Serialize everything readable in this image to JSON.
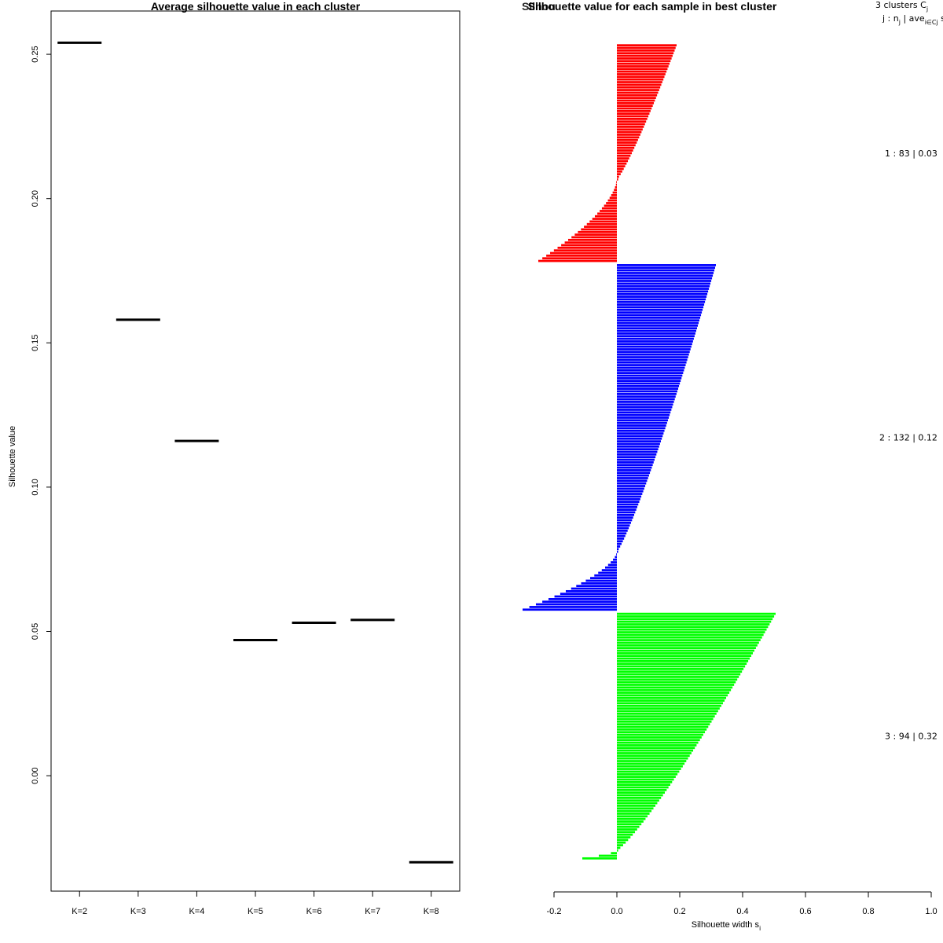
{
  "chart_data": [
    {
      "type": "scatter",
      "marker": "horizontal-segment",
      "title": "Average silhouette value in each cluster",
      "xlabel": "",
      "ylabel": "Silhouette value",
      "categories": [
        "K=2",
        "K=3",
        "K=4",
        "K=5",
        "K=6",
        "K=7",
        "K=8"
      ],
      "values": [
        0.254,
        0.158,
        0.116,
        0.047,
        0.053,
        0.054,
        -0.03
      ],
      "ylim": [
        -0.04,
        0.265
      ],
      "yticks": [
        "0.00",
        "0.05",
        "0.10",
        "0.15",
        "0.20",
        "0.25"
      ],
      "grid": false,
      "color": "#000000"
    },
    {
      "type": "bar",
      "orientation": "horizontal",
      "title": "Silhouette value for each sample in best cluster",
      "title_overlap": "Silhou",
      "xlabel": "Silhouette width s",
      "xlabel_sub": "i",
      "xlim": [
        -0.2,
        1.0
      ],
      "xticks": [
        "-0.2",
        "0.0",
        "0.2",
        "0.4",
        "0.6",
        "0.8",
        "1.0"
      ],
      "grid": false,
      "legend_header_1": "3  clusters  C",
      "legend_header_1_sub": "j",
      "legend_header_2": "j :  n",
      "legend_header_2_sub": "j",
      "legend_header_2b": " | ave",
      "legend_header_2b_sub": "i∈Cj",
      "legend_header_2c": "  s",
      "series": [
        {
          "cluster": 1,
          "n": 83,
          "label": "1 :   83  |  0.03",
          "color": "#ff0000",
          "max": 0.19,
          "min": -0.25,
          "n_pos": 52
        },
        {
          "cluster": 2,
          "n": 132,
          "label": "2 :  132  |  0.12",
          "color": "#0000ff",
          "max": 0.315,
          "min": -0.3,
          "n_pos": 110
        },
        {
          "cluster": 3,
          "n": 94,
          "label": "3 :   94  |  0.32",
          "color": "#00ff00",
          "max": 0.505,
          "min": -0.11,
          "n_pos": 91
        }
      ]
    }
  ]
}
